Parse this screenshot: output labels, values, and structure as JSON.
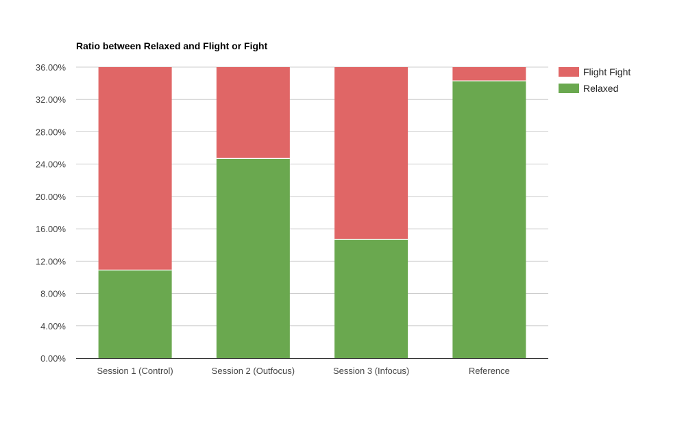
{
  "chart_data": {
    "type": "bar",
    "stacked": true,
    "title": "Ratio between Relaxed and Flight or Fight",
    "xlabel": "",
    "ylabel": "",
    "categories": [
      "Session 1 (Control)",
      "Session 2 (Outfocus)",
      "Session 3 (Infocus)",
      "Reference"
    ],
    "series": [
      {
        "name": "Relaxed",
        "color": "#6aa84f",
        "values": [
          10.9,
          24.7,
          14.7,
          34.3
        ]
      },
      {
        "name": "Flight Fight",
        "color": "#e06666",
        "values": [
          25.1,
          11.3,
          21.3,
          1.7
        ]
      }
    ],
    "legend_order": [
      "Flight Fight",
      "Relaxed"
    ],
    "ylim": [
      0,
      36
    ],
    "yticks": [
      0,
      4,
      8,
      12,
      16,
      20,
      24,
      28,
      32,
      36
    ],
    "ytick_labels": [
      "0.00%",
      "4.00%",
      "8.00%",
      "12.00%",
      "16.00%",
      "20.00%",
      "24.00%",
      "28.00%",
      "32.00%",
      "36.00%"
    ],
    "grid": true,
    "legend_position": "right"
  }
}
